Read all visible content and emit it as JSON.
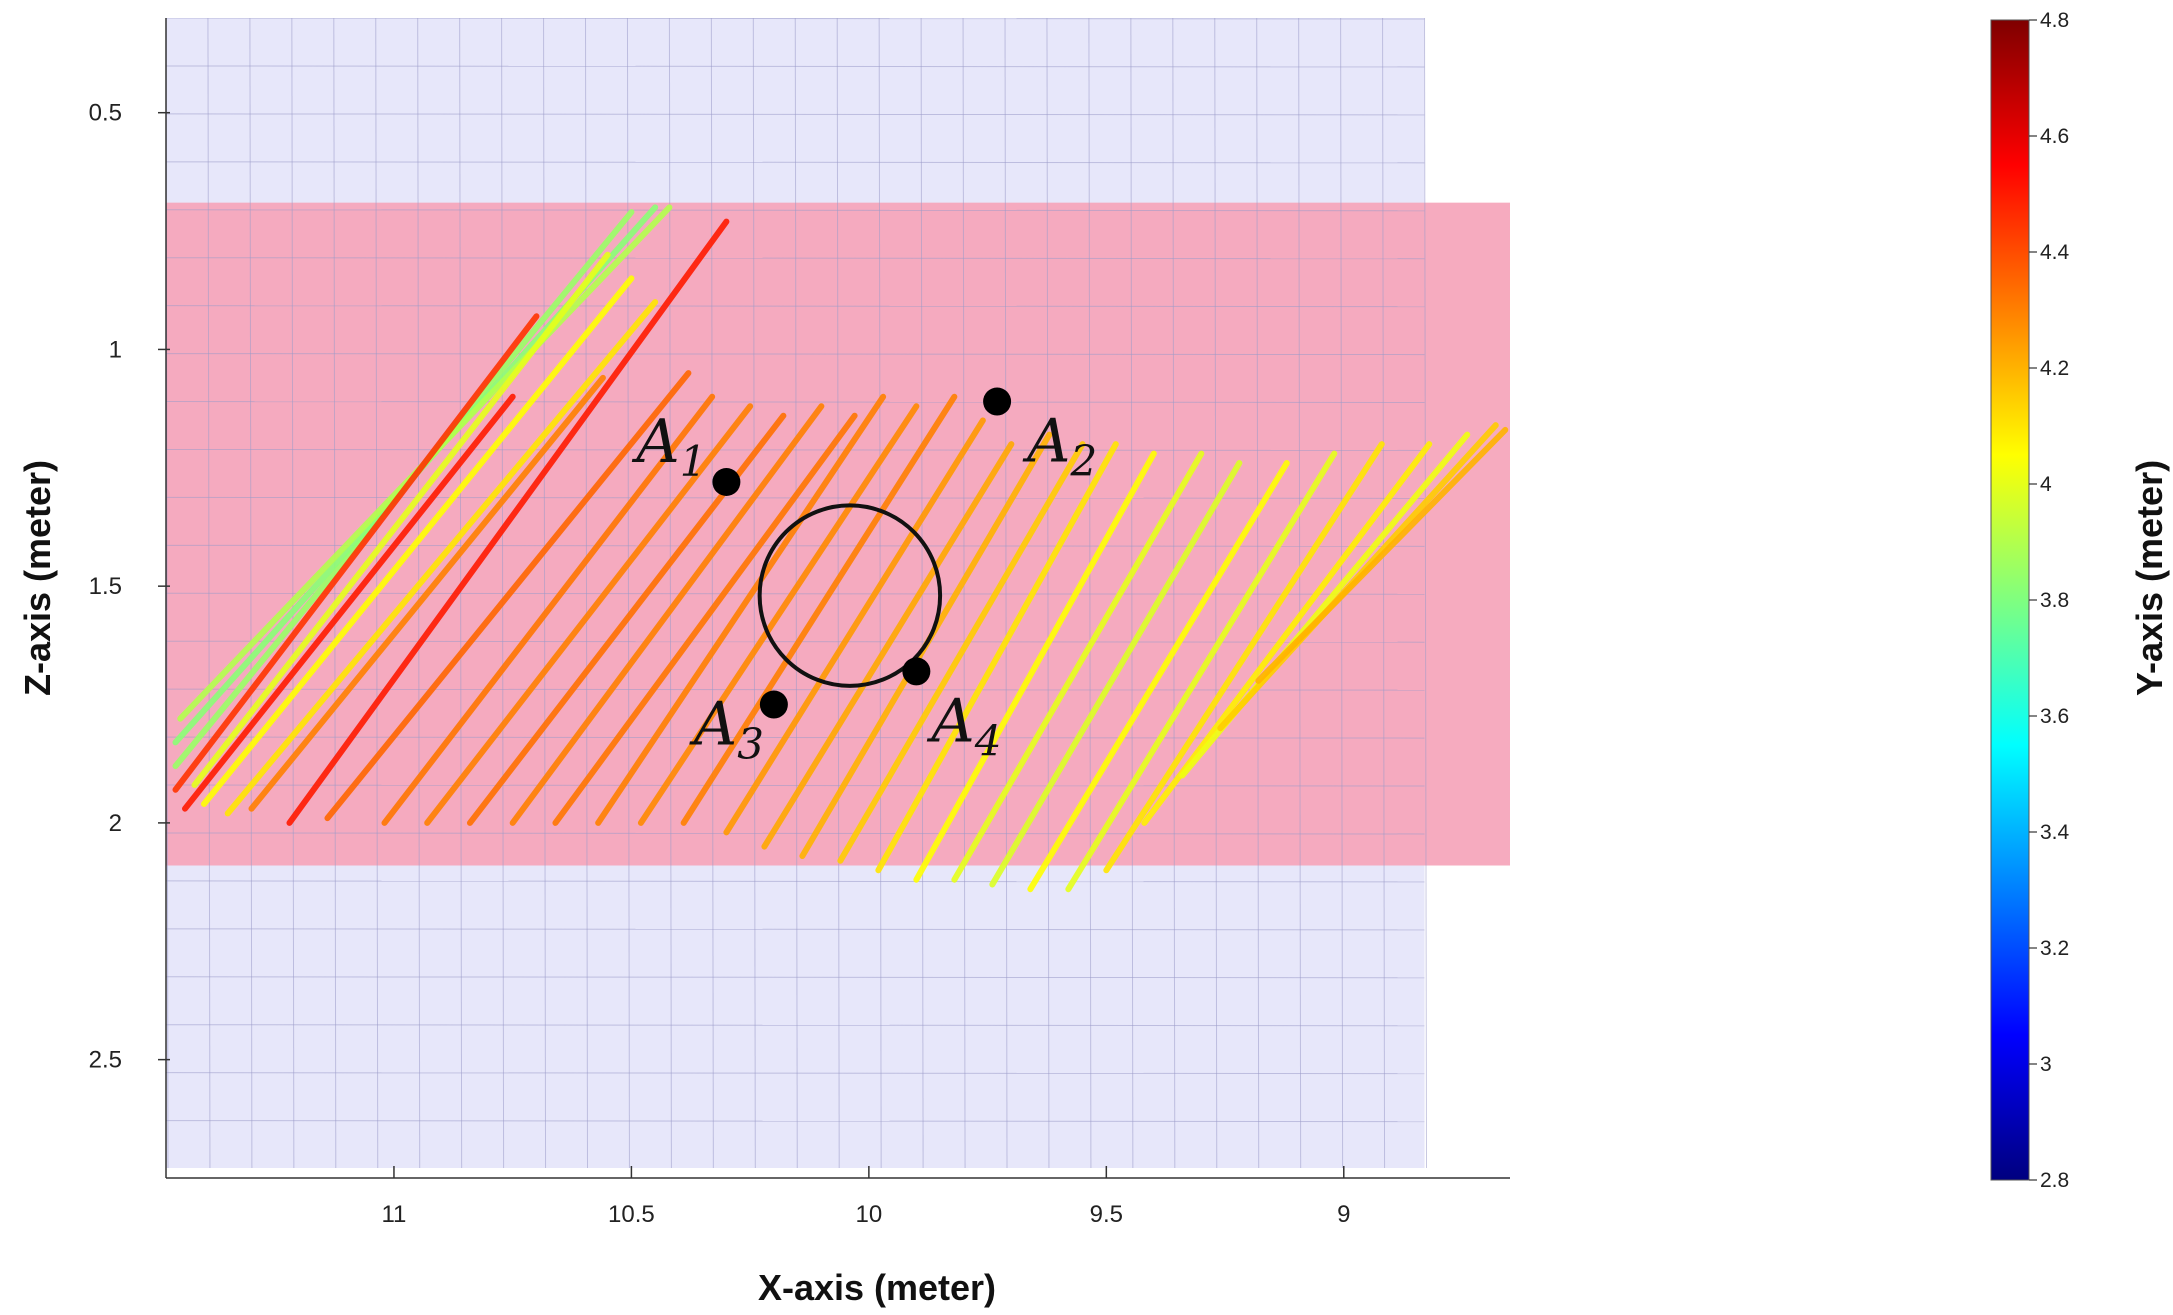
{
  "chart_data": {
    "type": "scatter",
    "title": "",
    "xlabel": "X-axis (meter)",
    "ylabel": "Z-axis (meter)",
    "colorbar_label": "Y-axis (meter)",
    "x_reversed": true,
    "y_reversed": true,
    "xlim": [
      11.48,
      8.65
    ],
    "ylim": [
      0.3,
      2.75
    ],
    "x_ticks": [
      "11",
      "10.5",
      "10",
      "9.5",
      "9"
    ],
    "x_tick_values": [
      11,
      10.5,
      10,
      9.5,
      9
    ],
    "y_ticks": [
      "0.5",
      "1",
      "1.5",
      "2",
      "2.5"
    ],
    "y_tick_values": [
      0.5,
      1,
      1.5,
      2,
      2.5
    ],
    "colorbar_ticks": [
      "4.8",
      "4.6",
      "4.4",
      "4.2",
      "4",
      "3.8",
      "3.6",
      "3.4",
      "3.2",
      "3",
      "2.8"
    ],
    "colorbar_range": [
      2.8,
      4.8
    ],
    "regions": [
      {
        "name": "wall",
        "x_range": [
          11.48,
          8.83
        ],
        "z_range": [
          0.3,
          2.73
        ],
        "color": "#e6e6fa"
      },
      {
        "name": "band",
        "x_range": [
          11.48,
          8.65
        ],
        "z_range": [
          0.69,
          2.09
        ],
        "color": "#f6a7bc"
      }
    ],
    "points": [
      {
        "label": "A",
        "sub": "1",
        "x": 10.3,
        "z": 1.28
      },
      {
        "label": "A",
        "sub": "2",
        "x": 9.73,
        "z": 1.11
      },
      {
        "label": "A",
        "sub": "3",
        "x": 10.2,
        "z": 1.75
      },
      {
        "label": "A",
        "sub": "4",
        "x": 9.9,
        "z": 1.68
      }
    ],
    "circle": {
      "x": 10.04,
      "z": 1.52,
      "radius_x": 0.19
    },
    "scan_lines": [
      {
        "x1": 11.46,
        "z1": 1.88,
        "x2": 10.5,
        "z2": 0.71,
        "y": 3.85
      },
      {
        "x1": 11.46,
        "z1": 1.83,
        "x2": 10.45,
        "z2": 0.7,
        "y": 3.82
      },
      {
        "x1": 11.45,
        "z1": 1.78,
        "x2": 10.42,
        "z2": 0.7,
        "y": 3.9
      },
      {
        "x1": 11.46,
        "z1": 1.93,
        "x2": 10.7,
        "z2": 0.93,
        "y": 4.45
      },
      {
        "x1": 11.44,
        "z1": 1.97,
        "x2": 10.75,
        "z2": 1.1,
        "y": 4.5
      },
      {
        "x1": 11.42,
        "z1": 1.92,
        "x2": 10.55,
        "z2": 0.8,
        "y": 4.0
      },
      {
        "x1": 11.4,
        "z1": 1.96,
        "x2": 10.5,
        "z2": 0.85,
        "y": 4.05
      },
      {
        "x1": 11.35,
        "z1": 1.98,
        "x2": 10.45,
        "z2": 0.9,
        "y": 4.1
      },
      {
        "x1": 11.3,
        "z1": 1.97,
        "x2": 10.56,
        "z2": 1.06,
        "y": 4.3
      },
      {
        "x1": 11.22,
        "z1": 2.0,
        "x2": 10.3,
        "z2": 0.73,
        "y": 4.5
      },
      {
        "x1": 11.14,
        "z1": 1.99,
        "x2": 10.38,
        "z2": 1.05,
        "y": 4.35
      },
      {
        "x1": 11.02,
        "z1": 2.0,
        "x2": 10.33,
        "z2": 1.1,
        "y": 4.32
      },
      {
        "x1": 10.93,
        "z1": 2.0,
        "x2": 10.25,
        "z2": 1.12,
        "y": 4.3
      },
      {
        "x1": 10.84,
        "z1": 2.0,
        "x2": 10.18,
        "z2": 1.14,
        "y": 4.33
      },
      {
        "x1": 10.75,
        "z1": 2.0,
        "x2": 10.1,
        "z2": 1.12,
        "y": 4.3
      },
      {
        "x1": 10.66,
        "z1": 2.0,
        "x2": 10.03,
        "z2": 1.14,
        "y": 4.32
      },
      {
        "x1": 10.57,
        "z1": 2.0,
        "x2": 9.97,
        "z2": 1.1,
        "y": 4.3
      },
      {
        "x1": 10.48,
        "z1": 2.0,
        "x2": 9.9,
        "z2": 1.12,
        "y": 4.28
      },
      {
        "x1": 10.39,
        "z1": 2.0,
        "x2": 9.82,
        "z2": 1.1,
        "y": 4.3
      },
      {
        "x1": 10.3,
        "z1": 2.02,
        "x2": 9.76,
        "z2": 1.15,
        "y": 4.25
      },
      {
        "x1": 10.22,
        "z1": 2.05,
        "x2": 9.7,
        "z2": 1.2,
        "y": 4.22
      },
      {
        "x1": 10.14,
        "z1": 2.07,
        "x2": 9.62,
        "z2": 1.18,
        "y": 4.2
      },
      {
        "x1": 10.06,
        "z1": 2.08,
        "x2": 9.55,
        "z2": 1.2,
        "y": 4.15
      },
      {
        "x1": 9.98,
        "z1": 2.1,
        "x2": 9.48,
        "z2": 1.2,
        "y": 4.1
      },
      {
        "x1": 9.9,
        "z1": 2.12,
        "x2": 9.4,
        "z2": 1.22,
        "y": 4.05
      },
      {
        "x1": 9.82,
        "z1": 2.12,
        "x2": 9.3,
        "z2": 1.22,
        "y": 4.0
      },
      {
        "x1": 9.74,
        "z1": 2.13,
        "x2": 9.22,
        "z2": 1.24,
        "y": 3.98
      },
      {
        "x1": 9.66,
        "z1": 2.14,
        "x2": 9.12,
        "z2": 1.24,
        "y": 4.05
      },
      {
        "x1": 9.58,
        "z1": 2.14,
        "x2": 9.02,
        "z2": 1.22,
        "y": 4.0
      },
      {
        "x1": 9.5,
        "z1": 2.1,
        "x2": 8.92,
        "z2": 1.2,
        "y": 4.1
      },
      {
        "x1": 9.42,
        "z1": 2.0,
        "x2": 8.82,
        "z2": 1.2,
        "y": 4.08
      },
      {
        "x1": 9.34,
        "z1": 1.9,
        "x2": 8.74,
        "z2": 1.18,
        "y": 4.02
      },
      {
        "x1": 9.26,
        "z1": 1.8,
        "x2": 8.68,
        "z2": 1.16,
        "y": 4.15
      },
      {
        "x1": 9.18,
        "z1": 1.7,
        "x2": 8.66,
        "z2": 1.17,
        "y": 4.2
      }
    ]
  }
}
